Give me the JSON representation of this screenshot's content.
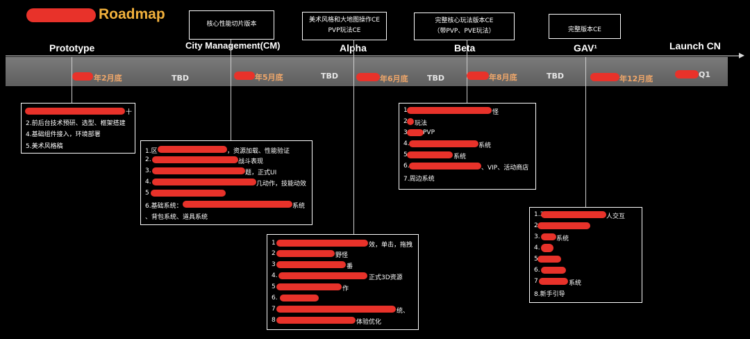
{
  "title": "Roadmap",
  "stages": {
    "prototype": "Prototype",
    "cm": "City Management(CM)",
    "alpha": "Alpha",
    "beta": "Beta",
    "gav": "GAV¹",
    "launch": "Launch CN"
  },
  "top_boxes": {
    "cm": [
      "核心性能切片版本"
    ],
    "alpha": [
      "美术风格和大地图操作CE",
      "PVP玩法CE"
    ],
    "beta": [
      "完整核心玩法版本CE",
      "（带PVP、PVE玩法）"
    ],
    "gav": [
      "完整版本CE"
    ]
  },
  "timeline": {
    "dates": [
      "年2月底",
      "年5月底",
      "年6月底",
      "年8月底",
      "年12月底",
      "Q1"
    ],
    "tbd": "TBD"
  },
  "boxes": {
    "prototype": [
      "十",
      "2.前后台技术预研、选型、框架搭建",
      "4.基础组件接入，环境部署",
      "5.美术风格稿"
    ],
    "cm": [
      "1.区",
      "，资源加载、性能验证",
      "2.",
      "战斗表现",
      "3.",
      "题，正式UI",
      "4.",
      "几动作，技能动效",
      "5",
      "6.基础系统：",
      "系统",
      "、背包系统、道具系统"
    ],
    "alpha": [
      "1",
      "效，单击，拖拽",
      "2",
      "野怪",
      "3",
      "番",
      "4.",
      "正式3D资源",
      "5",
      "作",
      "6.",
      "7",
      "统、",
      "8",
      "体验优化"
    ],
    "beta": [
      "1",
      "怪",
      "2",
      "玩法",
      "3",
      "PVP",
      "4.",
      "系统",
      "5",
      "系统",
      "6.",
      "、VIP、活动商店",
      "7.周边系统"
    ],
    "gav": [
      "1.3",
      "人交互",
      "2",
      "3.",
      "系统",
      "4.",
      "5",
      "6.",
      "7",
      "系统",
      "8.新手引导"
    ]
  },
  "colors": {
    "title": "#f2b13c",
    "redaction": "#e8322a",
    "date": "#f0a76a",
    "bar": "#6a6a6a"
  }
}
